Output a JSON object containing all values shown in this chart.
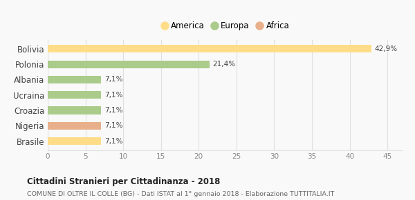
{
  "categories": [
    "Bolivia",
    "Polonia",
    "Albania",
    "Ucraina",
    "Croazia",
    "Nigeria",
    "Brasile"
  ],
  "values": [
    42.9,
    21.4,
    7.1,
    7.1,
    7.1,
    7.1,
    7.1
  ],
  "labels": [
    "42,9%",
    "21,4%",
    "7,1%",
    "7,1%",
    "7,1%",
    "7,1%",
    "7,1%"
  ],
  "colors": [
    "#FFDD88",
    "#AACB8A",
    "#AACB8A",
    "#AACB8A",
    "#AACB8A",
    "#E8B08A",
    "#FFDD88"
  ],
  "legend": [
    {
      "label": "America",
      "color": "#FFDD88"
    },
    {
      "label": "Europa",
      "color": "#AACB8A"
    },
    {
      "label": "Africa",
      "color": "#E8B08A"
    }
  ],
  "xlim": [
    0,
    47
  ],
  "xticks": [
    0,
    5,
    10,
    15,
    20,
    25,
    30,
    35,
    40,
    45
  ],
  "title": "Cittadini Stranieri per Cittadinanza - 2018",
  "subtitle": "COMUNE DI OLTRE IL COLLE (BG) - Dati ISTAT al 1° gennaio 2018 - Elaborazione TUTTITALIA.IT",
  "bg_color": "#f9f9f9",
  "grid_color": "#e0e0e0",
  "bar_height": 0.5
}
